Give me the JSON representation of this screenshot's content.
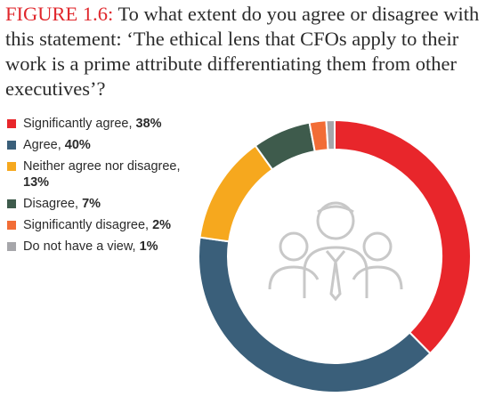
{
  "chart_data": {
    "type": "donut",
    "figure_label": "FIGURE 1.6:",
    "title": "To what extent do you agree or disagree with this statement: ‘The ethical lens that CFOs apply to their work is a prime attribute differentiating them from other executives’?",
    "categories": [
      "Significantly agree,",
      "Agree,",
      "Neither agree nor disagree,",
      "Disagree,",
      "Significantly disagree,",
      "Do not have a view,"
    ],
    "values": [
      38,
      40,
      13,
      7,
      2,
      1
    ],
    "value_labels": [
      "38%",
      "40%",
      "13%",
      "7%",
      "2%",
      "1%"
    ],
    "colors": [
      "#e8262b",
      "#3a5f7a",
      "#f6a81e",
      "#3e5b4c",
      "#f26d36",
      "#a6a6aa"
    ]
  }
}
